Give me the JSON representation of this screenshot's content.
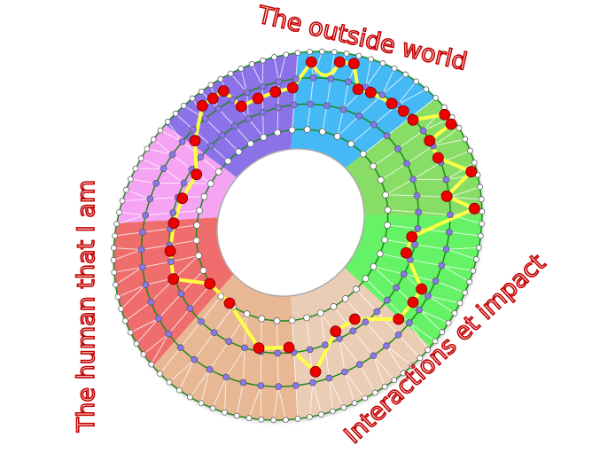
{
  "labels": {
    "top": "The outside world",
    "left": "The human that I am",
    "bottom_right": "Interactions et impact"
  },
  "colors": {
    "label_stroke": "#c40000",
    "ring_line": "#1a8a1a",
    "path": "#ffff44",
    "path_node": "#ee0000",
    "inner_node": "#8877ee",
    "outer_node": "#ffffff"
  },
  "sectors": [
    {
      "name": "blue",
      "color": "#44b9f6"
    },
    {
      "name": "light-green",
      "color": "#88dd66"
    },
    {
      "name": "bright-green",
      "color": "#66f266"
    },
    {
      "name": "light-peach",
      "color": "#ebcdb6"
    },
    {
      "name": "dark-peach",
      "color": "#e8b894"
    },
    {
      "name": "red",
      "color": "#ef6d6d"
    },
    {
      "name": "pink",
      "color": "#f5a3f3"
    },
    {
      "name": "purple",
      "color": "#8b72e9"
    }
  ]
}
